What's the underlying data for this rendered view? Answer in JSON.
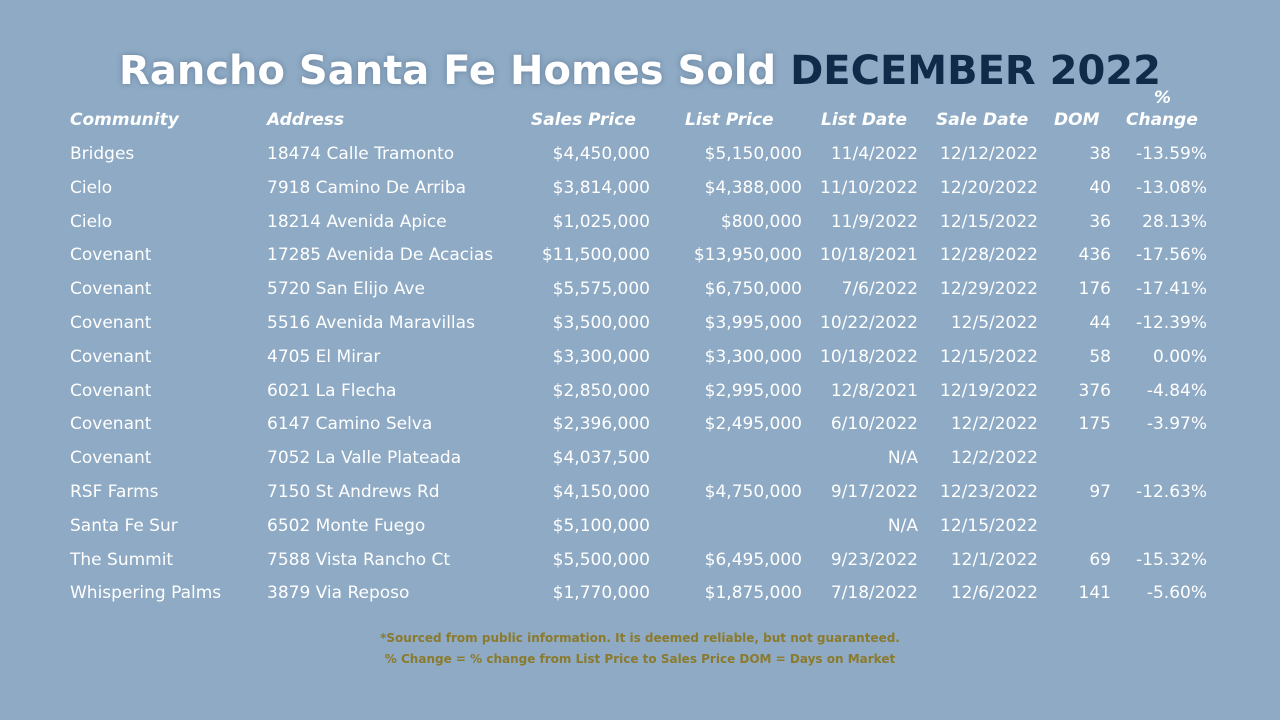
{
  "title": {
    "main": "Rancho Santa Fe Homes Sold",
    "accent": "DECEMBER 2022"
  },
  "columns": {
    "community": "Community",
    "address": "Address",
    "sales_price": "Sales Price",
    "list_price": "List Price",
    "list_date": "List Date",
    "sale_date": "Sale Date",
    "dom": "DOM",
    "pct_top": "%",
    "pct_bottom": "Change"
  },
  "rows": [
    {
      "community": "Bridges",
      "address": "18474 Calle Tramonto",
      "sales_price": "$4,450,000",
      "list_price": "$5,150,000",
      "list_date": "11/4/2022",
      "sale_date": "12/12/2022",
      "dom": "38",
      "pct_change": "-13.59%"
    },
    {
      "community": "Cielo",
      "address": "7918 Camino De Arriba",
      "sales_price": "$3,814,000",
      "list_price": "$4,388,000",
      "list_date": "11/10/2022",
      "sale_date": "12/20/2022",
      "dom": "40",
      "pct_change": "-13.08%"
    },
    {
      "community": "Cielo",
      "address": "18214 Avenida Apice",
      "sales_price": "$1,025,000",
      "list_price": "$800,000",
      "list_date": "11/9/2022",
      "sale_date": "12/15/2022",
      "dom": "36",
      "pct_change": "28.13%"
    },
    {
      "community": "Covenant",
      "address": "17285 Avenida De Acacias",
      "sales_price": "$11,500,000",
      "list_price": "$13,950,000",
      "list_date": "10/18/2021",
      "sale_date": "12/28/2022",
      "dom": "436",
      "pct_change": "-17.56%"
    },
    {
      "community": "Covenant",
      "address": "5720 San Elijo Ave",
      "sales_price": "$5,575,000",
      "list_price": "$6,750,000",
      "list_date": "7/6/2022",
      "sale_date": "12/29/2022",
      "dom": "176",
      "pct_change": "-17.41%"
    },
    {
      "community": "Covenant",
      "address": "5516 Avenida Maravillas",
      "sales_price": "$3,500,000",
      "list_price": "$3,995,000",
      "list_date": "10/22/2022",
      "sale_date": "12/5/2022",
      "dom": "44",
      "pct_change": "-12.39%"
    },
    {
      "community": "Covenant",
      "address": "4705 El Mirar",
      "sales_price": "$3,300,000",
      "list_price": "$3,300,000",
      "list_date": "10/18/2022",
      "sale_date": "12/15/2022",
      "dom": "58",
      "pct_change": "0.00%"
    },
    {
      "community": "Covenant",
      "address": "6021 La Flecha",
      "sales_price": "$2,850,000",
      "list_price": "$2,995,000",
      "list_date": "12/8/2021",
      "sale_date": "12/19/2022",
      "dom": "376",
      "pct_change": "-4.84%"
    },
    {
      "community": "Covenant",
      "address": "6147 Camino Selva",
      "sales_price": "$2,396,000",
      "list_price": "$2,495,000",
      "list_date": "6/10/2022",
      "sale_date": "12/2/2022",
      "dom": "175",
      "pct_change": "-3.97%"
    },
    {
      "community": "Covenant",
      "address": "7052 La Valle Plateada",
      "sales_price": "$4,037,500",
      "list_price": "",
      "list_date": "N/A",
      "sale_date": "12/2/2022",
      "dom": "",
      "pct_change": ""
    },
    {
      "community": "RSF Farms",
      "address": "7150 St Andrews Rd",
      "sales_price": "$4,150,000",
      "list_price": "$4,750,000",
      "list_date": "9/17/2022",
      "sale_date": "12/23/2022",
      "dom": "97",
      "pct_change": "-12.63%"
    },
    {
      "community": "Santa Fe Sur",
      "address": "6502 Monte Fuego",
      "sales_price": "$5,100,000",
      "list_price": "",
      "list_date": "N/A",
      "sale_date": "12/15/2022",
      "dom": "",
      "pct_change": ""
    },
    {
      "community": "The Summit",
      "address": "7588 Vista Rancho Ct",
      "sales_price": "$5,500,000",
      "list_price": "$6,495,000",
      "list_date": "9/23/2022",
      "sale_date": "12/1/2022",
      "dom": "69",
      "pct_change": "-15.32%"
    },
    {
      "community": "Whispering Palms",
      "address": "3879 Via Reposo",
      "sales_price": "$1,770,000",
      "list_price": "$1,875,000",
      "list_date": "7/18/2022",
      "sale_date": "12/6/2022",
      "dom": "141",
      "pct_change": "-5.60%"
    }
  ],
  "footer": {
    "line1": "*Sourced from public information. It is deemed reliable, but not guaranteed.",
    "line2": "% Change = % change from List Price to Sales Price DOM = Days on Market"
  },
  "colors": {
    "background": "#8eaac4",
    "accent": "#102a4a",
    "footer": "#8a7a2e",
    "text": "#ffffff"
  }
}
